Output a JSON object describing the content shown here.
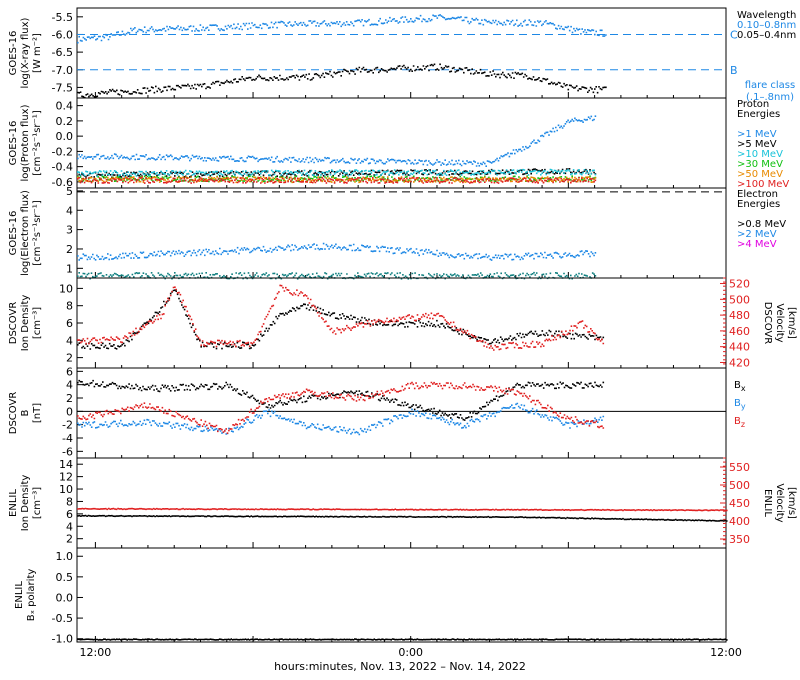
{
  "footer": "hours:minutes, Nov. 13, 2022 – Nov. 14, 2022",
  "colors": {
    "black": "#000000",
    "blue": "#1e88e5",
    "cyan": "#19c3d9",
    "green": "#10c010",
    "orange": "#e88a00",
    "red": "#e02020",
    "magenta": "#e000e0",
    "teal": "#108080"
  },
  "chart_data": [
    {
      "type": "scatter",
      "ylabel_lines": [
        "GOES-16",
        "log(X-ray flux)",
        "[W m⁻²]"
      ],
      "yticks": [
        "-5.5",
        "-6.0",
        "-6.5",
        "-7.0",
        "-7.5"
      ],
      "ylim": [
        -7.8,
        -5.25
      ],
      "xlim_hours": [
        11.3,
        36
      ],
      "data_end_hour": 31.4,
      "legend": [
        {
          "text": "Wavelength",
          "color": "#000000"
        },
        {
          "text": "0.10–0.8nm",
          "color": "#1e88e5"
        },
        {
          "text": "0.05–0.4nm",
          "color": "#000000"
        }
      ],
      "flare_class": [
        {
          "label": "C",
          "y": -6.0
        },
        {
          "label": "B",
          "y": -7.0
        }
      ],
      "flare_note": [
        "flare class",
        "(.1–.8nm)"
      ],
      "series": [
        {
          "name": "0.10–0.8nm",
          "color": "#1e88e5",
          "x": [
            11.3,
            12.5,
            13.5,
            16,
            19,
            22,
            25,
            27,
            29,
            30.5,
            31.4
          ],
          "y": [
            -6.12,
            -6.05,
            -5.85,
            -5.8,
            -5.7,
            -5.65,
            -5.5,
            -5.65,
            -5.65,
            -5.9,
            -5.95
          ]
        },
        {
          "name": "0.05–0.4nm",
          "color": "#000000",
          "x": [
            11.3,
            13,
            16,
            18,
            20,
            22,
            25,
            27,
            28.5,
            30,
            31.4
          ],
          "y": [
            -7.7,
            -7.6,
            -7.45,
            -7.2,
            -7.2,
            -7.0,
            -6.9,
            -7.1,
            -7.15,
            -7.5,
            -7.55
          ]
        }
      ]
    },
    {
      "type": "scatter",
      "ylabel_lines": [
        "GOES-16",
        "log(Proton flux)",
        "[cm⁻²s⁻¹sr⁻¹]"
      ],
      "yticks": [
        "0.4",
        "0.2",
        "0.0",
        "-0.2",
        "-0.4",
        "-0.6"
      ],
      "ylim": [
        -0.68,
        0.5
      ],
      "legend": [
        {
          "text": "Proton",
          "color": "#000000"
        },
        {
          "text": "Energies",
          "color": "#000000"
        },
        {
          "text": "",
          "color": "#000000"
        },
        {
          "text": ">1 MeV",
          "color": "#1e88e5"
        },
        {
          "text": ">5 MeV",
          "color": "#000000"
        },
        {
          "text": ">10 MeV",
          "color": "#19c3d9"
        },
        {
          "text": ">30 MeV",
          "color": "#10c010"
        },
        {
          "text": ">50 MeV",
          "color": "#e88a00"
        },
        {
          "text": ">100 MeV",
          "color": "#e02020"
        }
      ],
      "series": [
        {
          "name": ">1 MeV",
          "color": "#1e88e5",
          "x": [
            11.3,
            20,
            27,
            28.5,
            30,
            31
          ],
          "y": [
            -0.25,
            -0.3,
            -0.35,
            -0.1,
            0.2,
            0.25
          ]
        },
        {
          "name": ">5 MeV",
          "color": "#000000",
          "x": [
            11.3,
            31
          ],
          "y": [
            -0.5,
            -0.45
          ]
        },
        {
          "name": ">10 MeV",
          "color": "#19c3d9",
          "x": [
            11.3,
            31
          ],
          "y": [
            -0.48,
            -0.46
          ]
        },
        {
          "name": ">30 MeV",
          "color": "#10c010",
          "x": [
            11.3,
            31
          ],
          "y": [
            -0.55,
            -0.55
          ]
        },
        {
          "name": ">50 MeV",
          "color": "#e88a00",
          "x": [
            11.3,
            31
          ],
          "y": [
            -0.56,
            -0.56
          ]
        },
        {
          "name": ">100 MeV",
          "color": "#e02020",
          "x": [
            11.3,
            31
          ],
          "y": [
            -0.57,
            -0.57
          ]
        }
      ]
    },
    {
      "type": "scatter",
      "ylabel_lines": [
        "GOES-16",
        "log(Electron flux)",
        "[cm⁻²s⁻¹sr⁻¹]"
      ],
      "yticks": [
        "5",
        "4",
        "3",
        "2",
        "1"
      ],
      "ylim": [
        0.5,
        5.15
      ],
      "dashed_y": 4.95,
      "legend": [
        {
          "text": "Electron",
          "color": "#000000"
        },
        {
          "text": "Energies",
          "color": "#000000"
        },
        {
          "text": "",
          "color": "#000000"
        },
        {
          "text": ">0.8 MeV",
          "color": "#000000"
        },
        {
          "text": ">2 MeV",
          "color": "#1e88e5"
        },
        {
          "text": ">4 MeV",
          "color": "#e000e0"
        }
      ],
      "series": [
        {
          "name": ">2 MeV",
          "color": "#1e88e5",
          "x": [
            11.3,
            15,
            18,
            21,
            24,
            27,
            31
          ],
          "y": [
            1.6,
            1.8,
            2.0,
            2.2,
            1.9,
            1.6,
            1.8
          ]
        },
        {
          "name": ">4 MeV",
          "color": "#108080",
          "x": [
            11.3,
            31
          ],
          "y": [
            0.65,
            0.65
          ]
        }
      ]
    },
    {
      "type": "scatter",
      "ylabel_lines": [
        "DSCOVR",
        "Ion Density",
        "[cm⁻³]"
      ],
      "y2label_lines": [
        "DSCOVR",
        "Velocity",
        "[km/s]"
      ],
      "yticks": [
        "10",
        "8",
        "6",
        "4",
        "2"
      ],
      "y2ticks": [
        "520",
        "500",
        "480",
        "460",
        "440",
        "420"
      ],
      "ylim": [
        0.8,
        11.2
      ],
      "y2lim": [
        413,
        527
      ],
      "series": [
        {
          "name": "Density",
          "color": "#000000",
          "x": [
            11.3,
            13,
            14.5,
            15,
            16,
            18,
            19,
            20,
            21,
            23,
            25,
            27,
            29,
            30.5,
            31.3
          ],
          "y": [
            3.5,
            3.3,
            8,
            10,
            3.5,
            3.5,
            7,
            8,
            7,
            6,
            6,
            4,
            5,
            4.5,
            4.3
          ]
        },
        {
          "name": "Velocity",
          "color": "#e02020",
          "axis": "y2",
          "x": [
            11.3,
            13,
            14.5,
            15,
            16,
            18,
            19,
            20,
            21,
            23,
            25,
            27,
            29,
            30.5,
            31.3
          ],
          "y": [
            448,
            450,
            480,
            520,
            445,
            445,
            515,
            505,
            460,
            475,
            480,
            440,
            445,
            470,
            445
          ]
        }
      ]
    },
    {
      "type": "scatter",
      "ylabel_lines": [
        "DSCOVR",
        "B",
        "[nT]"
      ],
      "yticks": [
        "6",
        "4",
        "2",
        "0",
        "-2",
        "-4",
        "-6"
      ],
      "ylim": [
        -7,
        6.5
      ],
      "zero_line": true,
      "legend": [
        {
          "text": "Bx",
          "sub": "x",
          "color": "#000000"
        },
        {
          "text": "By",
          "sub": "y",
          "color": "#1e88e5"
        },
        {
          "text": "Bz",
          "sub": "z",
          "color": "#e02020"
        }
      ],
      "series": [
        {
          "name": "Bx",
          "color": "#000000",
          "x": [
            11.3,
            14,
            17,
            18.5,
            20,
            22,
            24,
            26,
            28,
            30,
            31.3
          ],
          "y": [
            4.5,
            3.5,
            4,
            1,
            2,
            3,
            1,
            -1,
            4,
            4,
            4
          ]
        },
        {
          "name": "By",
          "color": "#1e88e5",
          "x": [
            11.3,
            14,
            17,
            18.5,
            20,
            22,
            24,
            26,
            28,
            30,
            31.3
          ],
          "y": [
            -2,
            -1.5,
            -3,
            0,
            -2,
            -3,
            0,
            -2,
            1,
            -2,
            -1
          ]
        },
        {
          "name": "Bz",
          "color": "#e02020",
          "x": [
            11.3,
            14,
            17,
            18.5,
            20,
            22,
            24,
            26,
            28,
            30,
            31.3
          ],
          "y": [
            -1,
            1,
            -3,
            2,
            3,
            2,
            4,
            4,
            3,
            -1,
            -2
          ]
        }
      ]
    },
    {
      "type": "scatter",
      "ylabel_lines": [
        "ENLIL",
        "Ion Density",
        "[cm⁻³]"
      ],
      "y2label_lines": [
        "ENLIL",
        "Velocity",
        "[km/s]"
      ],
      "yticks": [
        "14",
        "12",
        "10",
        "8",
        "6",
        "4",
        "2"
      ],
      "y2ticks": [
        "550",
        "500",
        "450",
        "400",
        "350"
      ],
      "ylim": [
        0.5,
        15
      ],
      "y2lim": [
        325,
        575
      ],
      "series": [
        {
          "name": "Density",
          "color": "#000000",
          "x": [
            11.3,
            28,
            36
          ],
          "y": [
            5.8,
            5.6,
            5.0
          ]
        },
        {
          "name": "Velocity",
          "color": "#e02020",
          "axis": "y2",
          "x": [
            11.3,
            36
          ],
          "y": [
            436,
            432
          ]
        }
      ]
    },
    {
      "type": "scatter",
      "ylabel_lines": [
        "ENLIL",
        "Bₓ polarity"
      ],
      "yticks": [
        "1.0",
        "0.5",
        "0.0",
        "-0.5",
        "-1.0"
      ],
      "ylim": [
        -1.08,
        1.2
      ],
      "xticks": [
        {
          "hour": 12,
          "label": "12:00"
        },
        {
          "hour": 24,
          "label": "0:00"
        },
        {
          "hour": 36,
          "label": "12:00"
        }
      ],
      "series": [
        {
          "name": "polarity",
          "color": "#000000",
          "x": [
            11.3,
            36
          ],
          "y": [
            -1.0,
            -1.0
          ]
        }
      ]
    }
  ]
}
